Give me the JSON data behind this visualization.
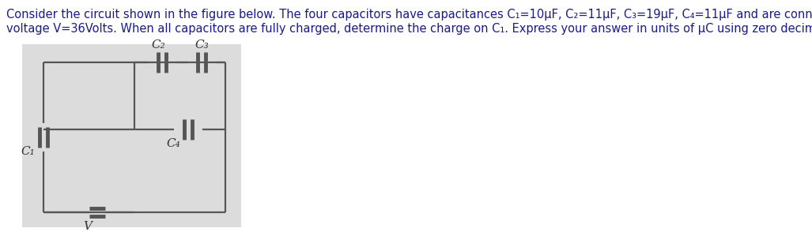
{
  "line1": "Consider the circuit shown in the figure below. The four capacitors have capacitances C₁=10µF, C₂=11µF, C₃=19µF, C₄=11µF and are connected to a battery of",
  "line2": "voltage V=36Volts. When all capacitors are fully charged, determine the charge on C₁. Express your answer in units of µC using zero decimal places.",
  "title_fontsize": 10.5,
  "title_color": "#1a1a8c",
  "background_color": "#ffffff",
  "diagram_bg": "#dcdcdc",
  "line_color": "#555555",
  "line_width": 1.6,
  "cap_plate_lw": 3.5,
  "label_fontsize": 11,
  "label_color": "#333333",
  "C1_label": "C₁",
  "C2_label": "C₂",
  "C3_label": "C₃",
  "C4_label": "C₄",
  "V_label": "V"
}
